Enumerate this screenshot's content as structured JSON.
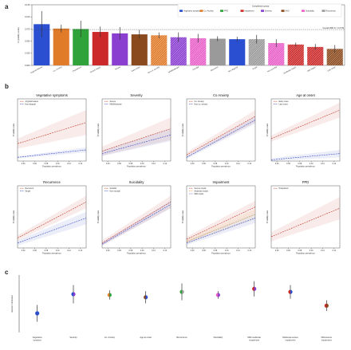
{
  "panel_labels": [
    "a",
    "b",
    "c"
  ],
  "chart_data": [
    {
      "type": "bar",
      "panel": "a",
      "ylabel": "h² (liability scale)",
      "ylim": [
        0,
        0.125
      ],
      "yticks": [
        "0.000",
        "0.025",
        "0.050",
        "0.075",
        "0.100",
        "0.125"
      ],
      "reference_label": "Overall MDD h² = 0.0739",
      "reference_value": 0.0739,
      "legend_title": "Comparison group",
      "legend": [
        {
          "name": "Vegetative symptom",
          "color": "#2b4fd1"
        },
        {
          "name": "Co. Anxiety",
          "color": "#e07b2a"
        },
        {
          "name": "PPD",
          "color": "#2fa23a"
        },
        {
          "name": "Impairment",
          "color": "#cc2a2a"
        },
        {
          "name": "Severity",
          "color": "#8a3fd1"
        },
        {
          "name": "AAO",
          "color": "#8b4a1e"
        },
        {
          "name": "Suicidality",
          "color": "#e860c8"
        },
        {
          "name": "Recurrence",
          "color": "#9a9a9a"
        }
      ],
      "categories": [
        "Atypical feature",
        "Co. Anxiety",
        "Postpartum",
        "Severe impair.",
        "Severe",
        "Early onset",
        "Non-co. anxiety",
        "Mild/Moderate",
        "Suicidal",
        "Recurrent",
        "Non-atypical",
        "Single",
        "Non-suicidal",
        "Moderate impair.",
        "Mild impair.",
        "Late onset"
      ],
      "values": [
        0.085,
        0.076,
        0.075,
        0.069,
        0.066,
        0.064,
        0.062,
        0.058,
        0.056,
        0.055,
        0.054,
        0.054,
        0.046,
        0.043,
        0.038,
        0.034
      ],
      "errors": [
        0.027,
        0.008,
        0.017,
        0.011,
        0.013,
        0.009,
        0.006,
        0.01,
        0.009,
        0.005,
        0.005,
        0.009,
        0.008,
        0.004,
        0.006,
        0.008
      ],
      "bar_colors": [
        "#2b4fd1",
        "#e07b2a",
        "#2fa23a",
        "#cc2a2a",
        "#8a3fd1",
        "#8b4a1e",
        "#e07b2a",
        "#8a3fd1",
        "#e860c8",
        "#9a9a9a",
        "#2b4fd1",
        "#9a9a9a",
        "#e860c8",
        "#cc2a2a",
        "#cc2a2a",
        "#8b4a1e"
      ],
      "hatched": [
        false,
        false,
        false,
        false,
        false,
        false,
        true,
        true,
        true,
        false,
        false,
        true,
        true,
        true,
        true,
        true
      ]
    },
    {
      "type": "line",
      "panel": "b",
      "xlabel": "Population prevalence",
      "ylabel": "h² liability scale",
      "xticks": [
        "0.04",
        "0.06",
        "0.08",
        "0.10",
        "0.12",
        "0.14"
      ],
      "x": [
        0.03,
        0.15
      ],
      "subplots": [
        {
          "title": "Vegetative symptoms",
          "series": [
            {
              "name": "Atypical feature",
              "color": "#c0392b",
              "y": [
                0.28,
                0.62
              ],
              "band": 0.2
            },
            {
              "name": "Non-atypical",
              "color": "#3b4fc4",
              "y": [
                0.06,
                0.18
              ],
              "band": 0.04
            }
          ]
        },
        {
          "title": "Severity",
          "series": [
            {
              "name": "Severe",
              "color": "#c0392b",
              "y": [
                0.16,
                0.52
              ],
              "band": 0.18
            },
            {
              "name": "Mild/Moderate",
              "color": "#3b4fc4",
              "y": [
                0.12,
                0.42
              ],
              "band": 0.1
            }
          ]
        },
        {
          "title": "Co Anxiety",
          "series": [
            {
              "name": "Co. Anxiety",
              "color": "#c0392b",
              "y": [
                0.1,
                0.72
              ],
              "band": 0.1
            },
            {
              "name": "Non-co. anxiety",
              "color": "#3b4fc4",
              "y": [
                0.06,
                0.66
              ],
              "band": 0.06
            }
          ]
        },
        {
          "title": "Age at onset",
          "series": [
            {
              "name": "Early onset",
              "color": "#c0392b",
              "y": [
                0.36,
                0.82
              ],
              "band": 0.12
            },
            {
              "name": "Late onset",
              "color": "#3b4fc4",
              "y": [
                0.02,
                0.12
              ],
              "band": 0.06
            }
          ]
        },
        {
          "title": "Recurrence",
          "series": [
            {
              "name": "Recurrent",
              "color": "#c0392b",
              "y": [
                0.16,
                0.74
              ],
              "band": 0.1
            },
            {
              "name": "Single",
              "color": "#3b4fc4",
              "y": [
                0.08,
                0.48
              ],
              "band": 0.1
            }
          ]
        },
        {
          "title": "Suicidality",
          "series": [
            {
              "name": "Suicidal",
              "color": "#c0392b",
              "y": [
                0.08,
                0.74
              ],
              "band": 0.1
            },
            {
              "name": "Non-suicidal",
              "color": "#3b4fc4",
              "y": [
                0.06,
                0.7
              ],
              "band": 0.06
            }
          ]
        },
        {
          "title": "Impairment",
          "series": [
            {
              "name": "Severe impair.",
              "color": "#c0392b",
              "y": [
                0.14,
                0.66
              ],
              "band": 0.1
            },
            {
              "name": "Moderate impair.",
              "color": "#e8a23a",
              "y": [
                0.1,
                0.54
              ],
              "band": 0.08
            },
            {
              "name": "Mild impair.",
              "color": "#3b4fc4",
              "y": [
                0.08,
                0.48
              ],
              "band": 0.08
            }
          ]
        },
        {
          "title": "PPD",
          "series": [
            {
              "name": "Postpartum",
              "color": "#c0392b",
              "y": [
                0.18,
                0.64
              ],
              "band": 0.18
            }
          ]
        }
      ]
    },
    {
      "type": "scatter",
      "panel": "c",
      "ylabel": "Genetic correlation",
      "ylim": [
        0.3,
        1.05
      ],
      "categories": [
        "Vegetative symptom",
        "Severity",
        "Co. Anxiety",
        "Age at onset",
        "Recurrence",
        "Suicidality",
        "Mild-moderate impairment",
        "Moderate-severe impairment",
        "Mild-severe impairment"
      ],
      "values": [
        0.55,
        0.8,
        0.79,
        0.76,
        0.83,
        0.79,
        0.87,
        0.83,
        0.65
      ],
      "errors": [
        0.11,
        0.12,
        0.06,
        0.08,
        0.11,
        0.05,
        0.1,
        0.09,
        0.07
      ],
      "point_colors": [
        [
          "#2b4fd1",
          "#2b4fd1"
        ],
        [
          "#2b4fd1",
          "#8a3fd1"
        ],
        [
          "#e07b2a",
          "#2fa23a"
        ],
        [
          "#8b4a1e",
          "#2b4fd1"
        ],
        [
          "#2fa23a",
          "#9a9a9a"
        ],
        [
          "#e860c8",
          "#8a3fd1"
        ],
        [
          "#cc2a2a",
          "#8a3fd1"
        ],
        [
          "#cc2a2a",
          "#2b4fd1"
        ],
        [
          "#cc2a2a",
          "#8b4a1e"
        ]
      ]
    }
  ]
}
